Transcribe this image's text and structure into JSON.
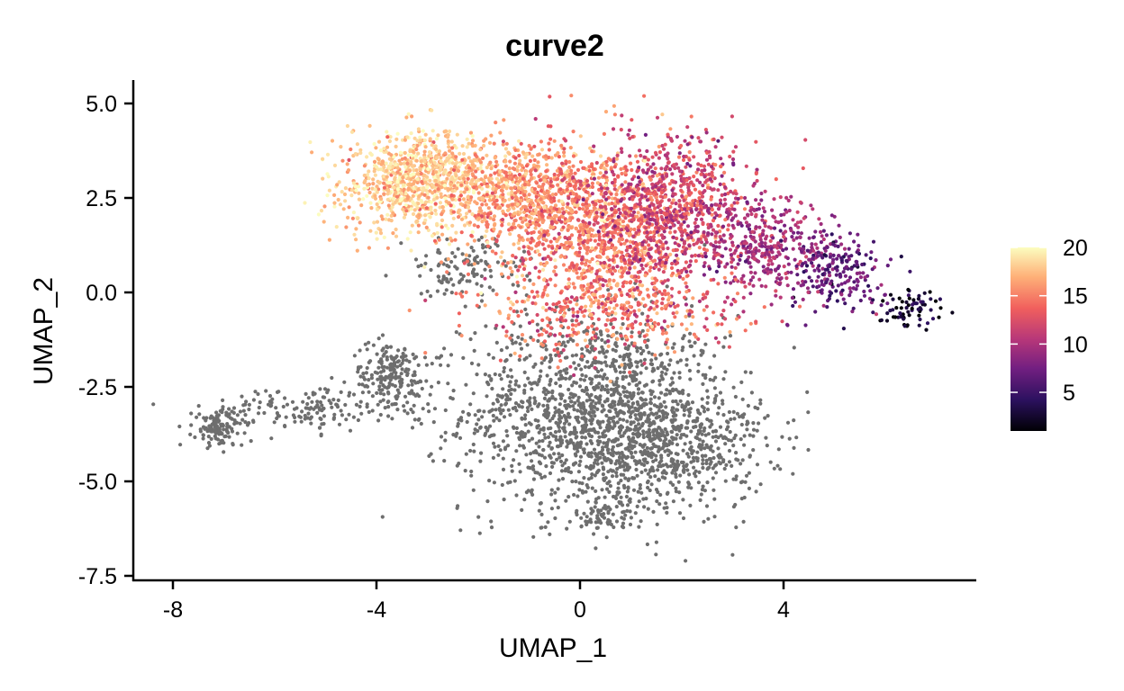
{
  "chart_data": {
    "type": "scatter",
    "title": "curve2",
    "xlabel": "UMAP_1",
    "ylabel": "UMAP_2",
    "xlim": [
      -8.8,
      7.8
    ],
    "ylim": [
      -7.6,
      5.6
    ],
    "x_ticks": [
      -8,
      -4,
      0,
      4
    ],
    "x_tick_labels": [
      "-8",
      "-4",
      "0",
      "4"
    ],
    "y_ticks": [
      5.0,
      2.5,
      0.0,
      -2.5,
      -5.0,
      -7.5
    ],
    "y_tick_labels": [
      "5.0",
      "2.5",
      "0.0",
      "-2.5",
      "-5.0",
      "-7.5"
    ],
    "grid": false,
    "legend": {
      "placement": "right",
      "type": "colorbar",
      "min": 1,
      "max": 20,
      "ticks": [
        20,
        15,
        10,
        5
      ],
      "tick_labels": [
        "20",
        "15",
        "10",
        "5"
      ]
    },
    "colormap": [
      "#000004",
      "#2c115f",
      "#721f81",
      "#b73779",
      "#f1605d",
      "#feb078",
      "#fcfdbf"
    ],
    "na_color": "#6e6e6e",
    "approx_point_count": 6000,
    "clusters": [
      {
        "name": "upper-left",
        "center": [
          -3.2,
          2.9
        ],
        "spread": [
          0.7,
          0.65
        ],
        "n": 900,
        "value": 18,
        "value_sd": 1.5
      },
      {
        "name": "upper-center-left",
        "center": [
          -1.2,
          2.6
        ],
        "spread": [
          0.8,
          0.7
        ],
        "n": 700,
        "value": 16,
        "value_sd": 1.5
      },
      {
        "name": "upper-center",
        "center": [
          0.5,
          1.7
        ],
        "spread": [
          0.9,
          1.1
        ],
        "n": 1100,
        "value": 14.5,
        "value_sd": 1.8
      },
      {
        "name": "upper-right-center",
        "center": [
          1.9,
          2.3
        ],
        "spread": [
          0.8,
          0.9
        ],
        "n": 700,
        "value": 11.5,
        "value_sd": 1.8
      },
      {
        "name": "right-branch",
        "center": [
          3.6,
          1.2
        ],
        "spread": [
          0.6,
          0.7
        ],
        "n": 350,
        "value": 9.5,
        "value_sd": 1.5
      },
      {
        "name": "right-tip",
        "center": [
          5.1,
          0.5
        ],
        "spread": [
          0.5,
          0.5
        ],
        "n": 200,
        "value": 6.5,
        "value_sd": 1.5
      },
      {
        "name": "far-right-tip",
        "center": [
          6.5,
          -0.4
        ],
        "spread": [
          0.3,
          0.25
        ],
        "n": 70,
        "value": 2.5,
        "value_sd": 1.5
      },
      {
        "name": "middle-lower",
        "center": [
          0.6,
          -0.5
        ],
        "spread": [
          1.3,
          0.6
        ],
        "n": 400,
        "value": 14,
        "value_sd": 2.0
      },
      {
        "name": "lower-gray-body",
        "center": [
          0.3,
          -3.2
        ],
        "spread": [
          1.3,
          1.3
        ],
        "n": 1500,
        "value": null
      },
      {
        "name": "lower-gray-right",
        "center": [
          1.9,
          -4.1
        ],
        "spread": [
          0.9,
          0.8
        ],
        "n": 450,
        "value": null
      },
      {
        "name": "lower-gray-bottom",
        "center": [
          0.5,
          -5.9
        ],
        "spread": [
          0.3,
          0.2
        ],
        "n": 60,
        "value": null
      },
      {
        "name": "left-arm",
        "center": [
          -3.7,
          -2.2
        ],
        "spread": [
          0.4,
          0.45
        ],
        "n": 200,
        "value": null
      },
      {
        "name": "left-arm-mid",
        "center": [
          -5.5,
          -3.1
        ],
        "spread": [
          0.9,
          0.3
        ],
        "n": 150,
        "value": null
      },
      {
        "name": "left-arm-tip",
        "center": [
          -7.1,
          -3.6
        ],
        "spread": [
          0.25,
          0.25
        ],
        "n": 120,
        "value": null
      },
      {
        "name": "below-upper-gray",
        "center": [
          -2.3,
          0.6
        ],
        "spread": [
          0.6,
          0.4
        ],
        "n": 120,
        "value": null
      }
    ]
  }
}
